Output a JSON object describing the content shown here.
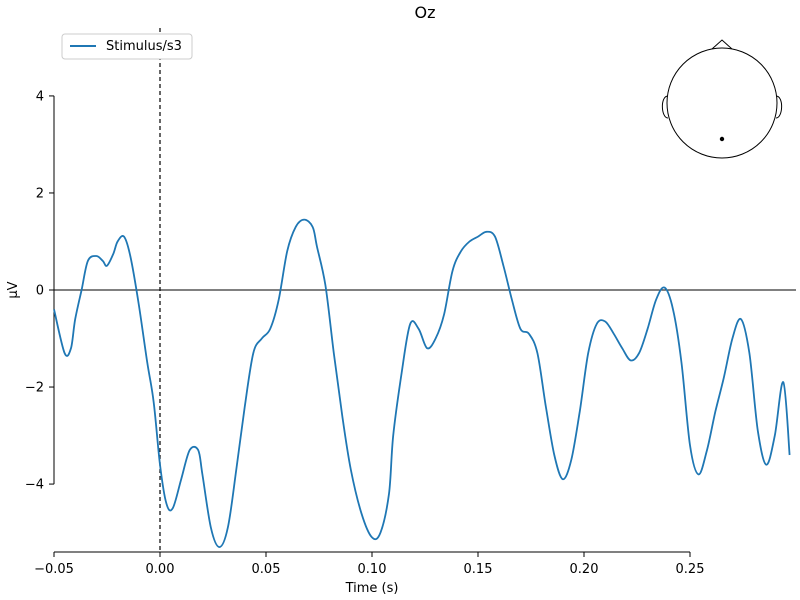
{
  "chart_data": {
    "type": "line",
    "title": "Oz",
    "xlabel": "Time (s)",
    "ylabel": "µV",
    "xlim": [
      -0.05,
      0.3
    ],
    "ylim": [
      -5.4,
      5.4
    ],
    "x_ticks": [
      -0.05,
      0.0,
      0.05,
      0.1,
      0.15,
      0.2,
      0.25
    ],
    "x_tick_labels": [
      "−0.05",
      "0.00",
      "0.05",
      "0.10",
      "0.15",
      "0.20",
      "0.25"
    ],
    "y_ticks": [
      -4,
      -2,
      0,
      2,
      4
    ],
    "y_tick_labels": [
      "−4",
      "−2",
      "0",
      "2",
      "4"
    ],
    "zero_line": 0,
    "event_marker_x": 0.0,
    "grid": false,
    "legend_position": "top-left",
    "series": [
      {
        "name": "Stimulus/s3",
        "color": "#1f77b4",
        "x": [
          -0.05,
          -0.045,
          -0.042,
          -0.04,
          -0.037,
          -0.034,
          -0.03,
          -0.027,
          -0.025,
          -0.022,
          -0.02,
          -0.017,
          -0.014,
          -0.01,
          -0.006,
          -0.003,
          0.0,
          0.003,
          0.006,
          0.01,
          0.014,
          0.018,
          0.02,
          0.024,
          0.028,
          0.032,
          0.036,
          0.04,
          0.044,
          0.048,
          0.052,
          0.056,
          0.06,
          0.064,
          0.068,
          0.072,
          0.074,
          0.078,
          0.082,
          0.086,
          0.09,
          0.095,
          0.1,
          0.104,
          0.108,
          0.11,
          0.114,
          0.118,
          0.122,
          0.126,
          0.13,
          0.134,
          0.138,
          0.142,
          0.146,
          0.15,
          0.154,
          0.158,
          0.162,
          0.166,
          0.17,
          0.174,
          0.178,
          0.182,
          0.186,
          0.19,
          0.194,
          0.198,
          0.202,
          0.206,
          0.21,
          0.214,
          0.218,
          0.222,
          0.226,
          0.23,
          0.234,
          0.238,
          0.242,
          0.246,
          0.25,
          0.254,
          0.258,
          0.262,
          0.266,
          0.27,
          0.274,
          0.278,
          0.282,
          0.286,
          0.29,
          0.294,
          0.297
        ],
        "y": [
          -0.4,
          -1.3,
          -1.2,
          -0.6,
          0.0,
          0.6,
          0.7,
          0.6,
          0.5,
          0.75,
          1.0,
          1.1,
          0.7,
          -0.3,
          -1.5,
          -2.3,
          -3.6,
          -4.4,
          -4.5,
          -3.9,
          -3.3,
          -3.3,
          -3.8,
          -4.9,
          -5.3,
          -4.9,
          -3.7,
          -2.4,
          -1.3,
          -1.0,
          -0.8,
          -0.2,
          0.8,
          1.3,
          1.45,
          1.3,
          0.9,
          0.1,
          -1.3,
          -2.6,
          -3.7,
          -4.6,
          -5.1,
          -5.0,
          -4.2,
          -3.0,
          -1.7,
          -0.7,
          -0.8,
          -1.2,
          -1.0,
          -0.5,
          0.4,
          0.8,
          1.0,
          1.1,
          1.2,
          1.1,
          0.5,
          -0.2,
          -0.8,
          -0.9,
          -1.3,
          -2.4,
          -3.4,
          -3.9,
          -3.5,
          -2.5,
          -1.3,
          -0.7,
          -0.65,
          -0.9,
          -1.2,
          -1.45,
          -1.3,
          -0.8,
          -0.2,
          0.05,
          -0.4,
          -1.5,
          -3.2,
          -3.8,
          -3.3,
          -2.5,
          -1.8,
          -1.0,
          -0.6,
          -1.3,
          -2.9,
          -3.6,
          -3.0,
          -1.9,
          -3.4
        ]
      }
    ]
  }
}
